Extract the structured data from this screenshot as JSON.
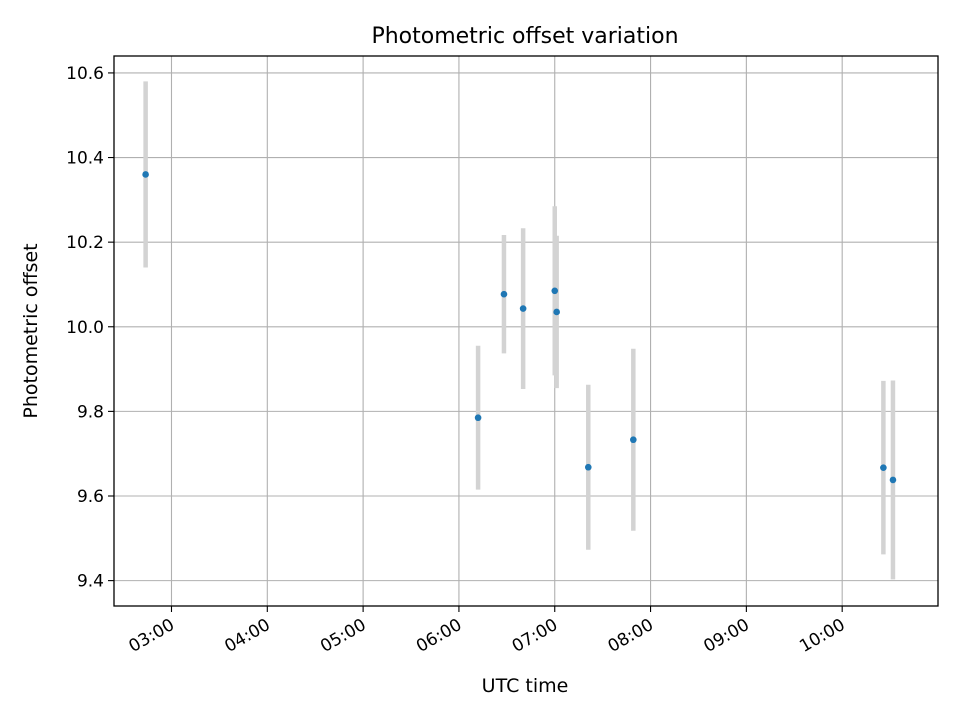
{
  "chart_data": {
    "type": "scatter",
    "title": "Photometric offset variation",
    "xlabel": "UTC time",
    "ylabel": "Photometric offset",
    "x_unit": "hours UTC",
    "xlim": [
      2.4,
      11.0
    ],
    "ylim": [
      9.34,
      10.64
    ],
    "x_ticks": [
      {
        "value": 3,
        "label": "03:00"
      },
      {
        "value": 4,
        "label": "04:00"
      },
      {
        "value": 5,
        "label": "05:00"
      },
      {
        "value": 6,
        "label": "06:00"
      },
      {
        "value": 7,
        "label": "07:00"
      },
      {
        "value": 8,
        "label": "08:00"
      },
      {
        "value": 9,
        "label": "09:00"
      },
      {
        "value": 10,
        "label": "10:00"
      }
    ],
    "y_ticks": [
      {
        "value": 9.4,
        "label": "9.4"
      },
      {
        "value": 9.6,
        "label": "9.6"
      },
      {
        "value": 9.8,
        "label": "9.8"
      },
      {
        "value": 10.0,
        "label": "10.0"
      },
      {
        "value": 10.2,
        "label": "10.2"
      },
      {
        "value": 10.4,
        "label": "10.4"
      },
      {
        "value": 10.6,
        "label": "10.6"
      }
    ],
    "grid": true,
    "colors": {
      "point": "#1f77b4",
      "errorbar": "#d3d3d3",
      "grid": "#b0b0b0",
      "axes": "#000000"
    },
    "series": [
      {
        "points": [
          {
            "x": 2.73,
            "y": 10.36,
            "err": 0.22
          },
          {
            "x": 6.2,
            "y": 9.785,
            "err": 0.17
          },
          {
            "x": 6.47,
            "y": 10.077,
            "err": 0.14
          },
          {
            "x": 6.67,
            "y": 10.043,
            "err": 0.19
          },
          {
            "x": 7.0,
            "y": 10.085,
            "err": 0.2
          },
          {
            "x": 7.02,
            "y": 10.035,
            "err": 0.18
          },
          {
            "x": 7.35,
            "y": 9.668,
            "err": 0.195
          },
          {
            "x": 7.82,
            "y": 9.733,
            "err": 0.215
          },
          {
            "x": 10.43,
            "y": 9.667,
            "err": 0.205
          },
          {
            "x": 10.53,
            "y": 9.638,
            "err": 0.235
          }
        ]
      }
    ]
  }
}
